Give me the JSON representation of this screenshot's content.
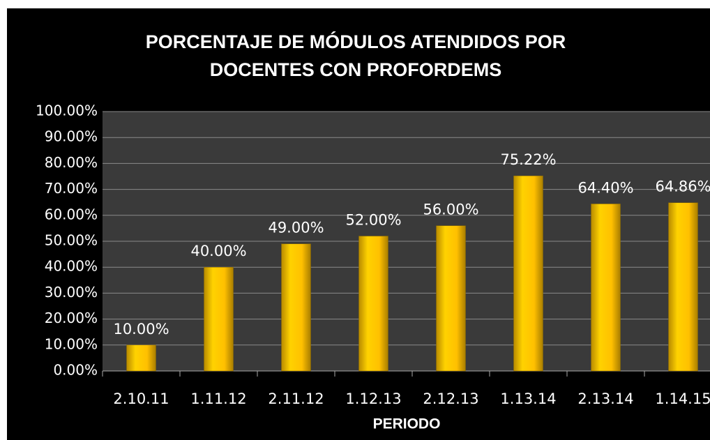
{
  "chart_data": {
    "type": "bar",
    "title": "PORCENTAJE DE MÓDULOS ATENDIDOS  POR DOCENTES CON PROFORDEMS",
    "x_label": "PERIODO",
    "categories": [
      "2.10.11",
      "1.11.12",
      "2.11.12",
      "1.12.13",
      "2.12.13",
      "1.13.14",
      "2.13.14",
      "1.14.15"
    ],
    "values": [
      10,
      40,
      49,
      52,
      56,
      75.22,
      64.4,
      64.86
    ],
    "value_labels": [
      "10.00%",
      "40.00%",
      "49.00%",
      "52.00%",
      "56.00%",
      "75.22%",
      "64.40%",
      "64.86%"
    ],
    "color": "#ffc000",
    "ylim": [
      0,
      100
    ],
    "yticks": [
      {
        "value": 0,
        "label": "0.00%"
      },
      {
        "value": 10,
        "label": "10.00%"
      },
      {
        "value": 20,
        "label": "20.00%"
      },
      {
        "value": 30,
        "label": "30.00%"
      },
      {
        "value": 40,
        "label": "40.00%"
      },
      {
        "value": 50,
        "label": "50.00%"
      },
      {
        "value": 60,
        "label": "60.00%"
      },
      {
        "value": 70,
        "label": "70.00%"
      },
      {
        "value": 80,
        "label": "80.00%"
      },
      {
        "value": 90,
        "label": "90.00%"
      },
      {
        "value": 100,
        "label": "100.00%"
      }
    ],
    "grid": true
  }
}
